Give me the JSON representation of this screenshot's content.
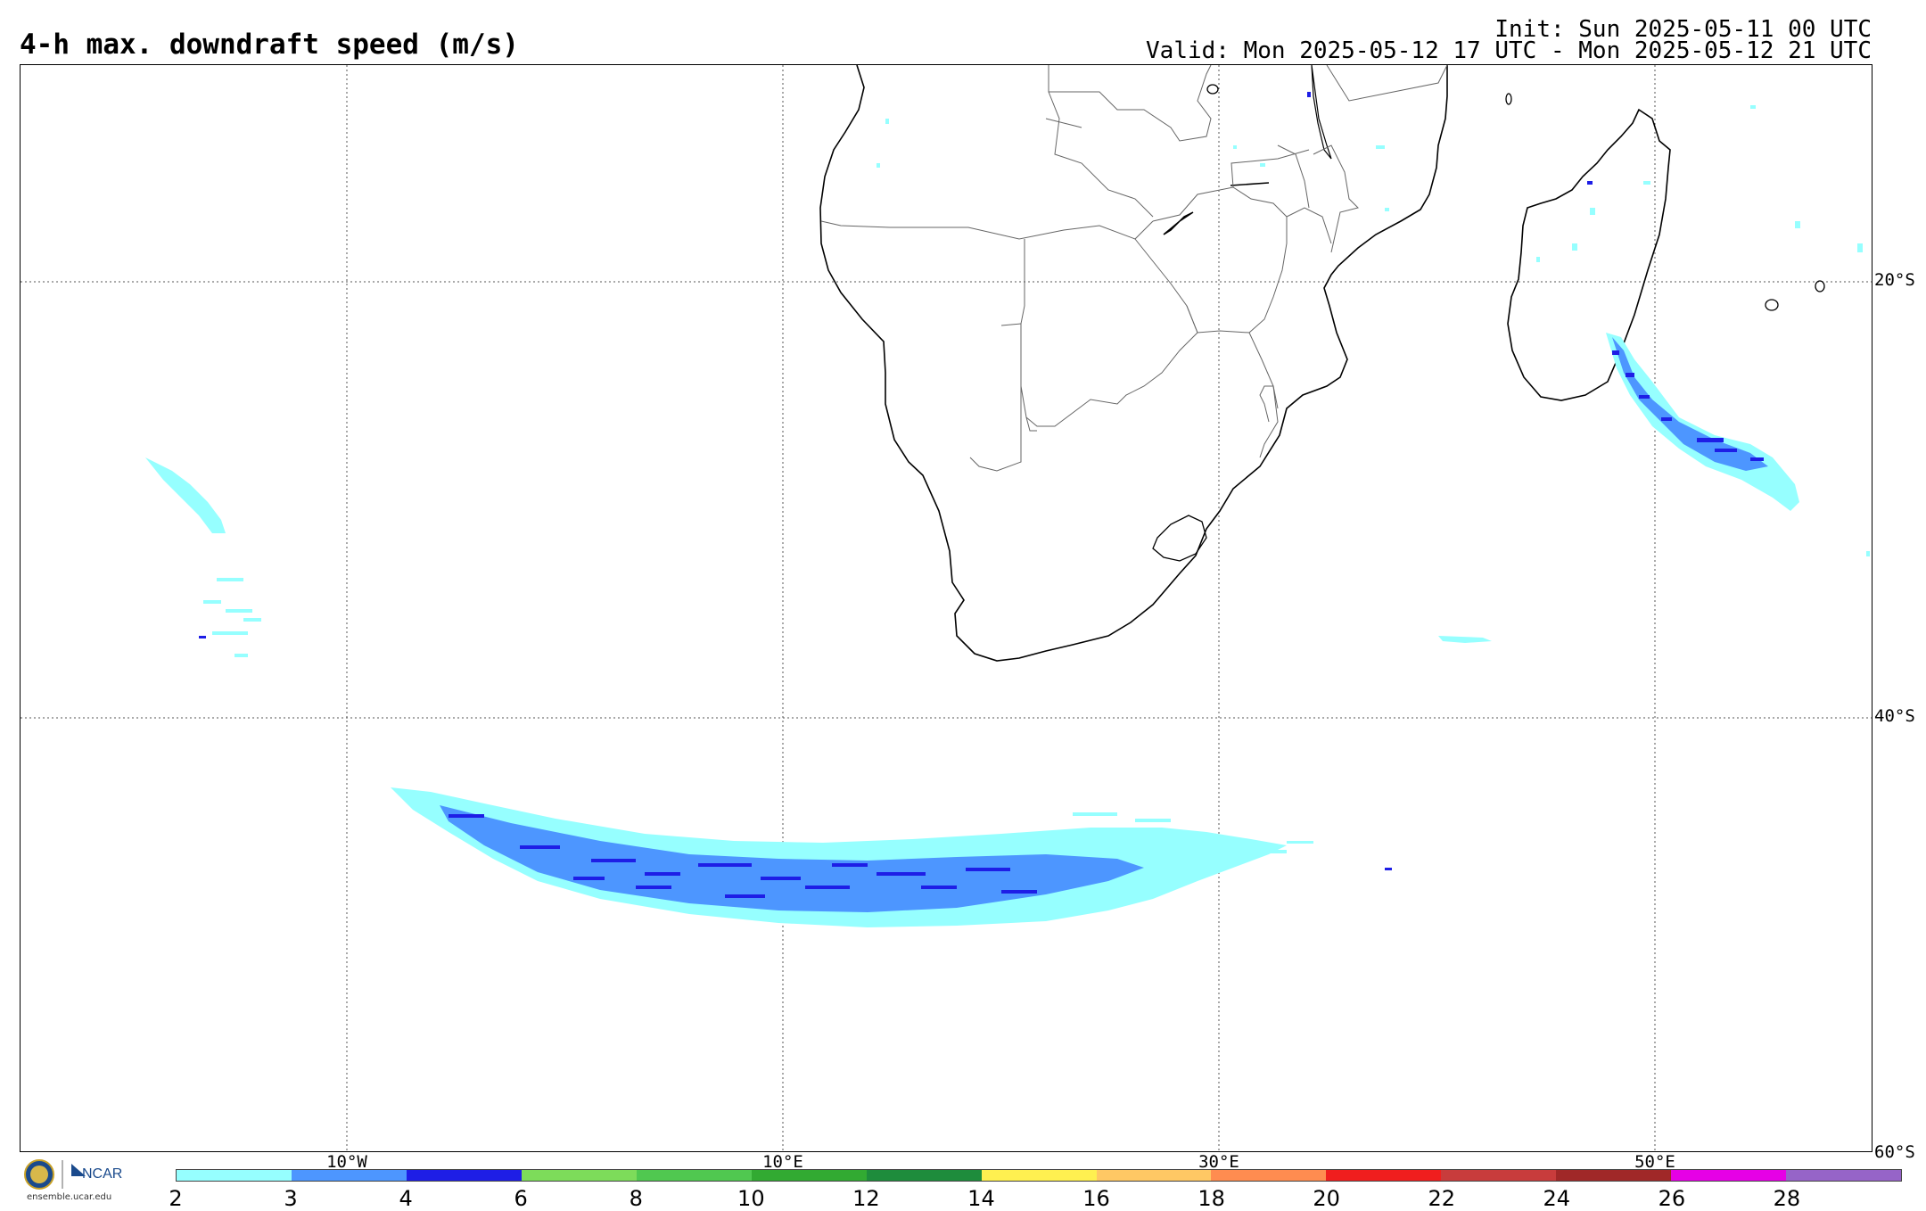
{
  "header": {
    "title": "4-h max. downdraft speed (m/s)",
    "init": "Init: Sun 2025-05-11 00 UTC",
    "valid": "Valid: Mon 2025-05-12 17 UTC - Mon 2025-05-12 21 UTC"
  },
  "map": {
    "latitude_labels": [
      "20°S",
      "40°S",
      "60°S"
    ],
    "longitude_labels": [
      "10°W",
      "10°E",
      "30°E",
      "50°E"
    ]
  },
  "colorbar": {
    "tick_labels": [
      "2",
      "3",
      "4",
      "6",
      "8",
      "10",
      "12",
      "14",
      "16",
      "18",
      "20",
      "22",
      "24",
      "26",
      "28"
    ],
    "colors": [
      "#96ffff",
      "#4d96ff",
      "#1e1ee6",
      "#7ddc5a",
      "#50c850",
      "#32aa32",
      "#1e8c3c",
      "#fff050",
      "#ffc864",
      "#ff8c50",
      "#f01e1e",
      "#c83c3c",
      "#a02828",
      "#e600e6",
      "#9664c8"
    ]
  },
  "logo": {
    "org1": "NSF",
    "org2": "NCAR",
    "url": "ensemble.ucar.edu"
  }
}
